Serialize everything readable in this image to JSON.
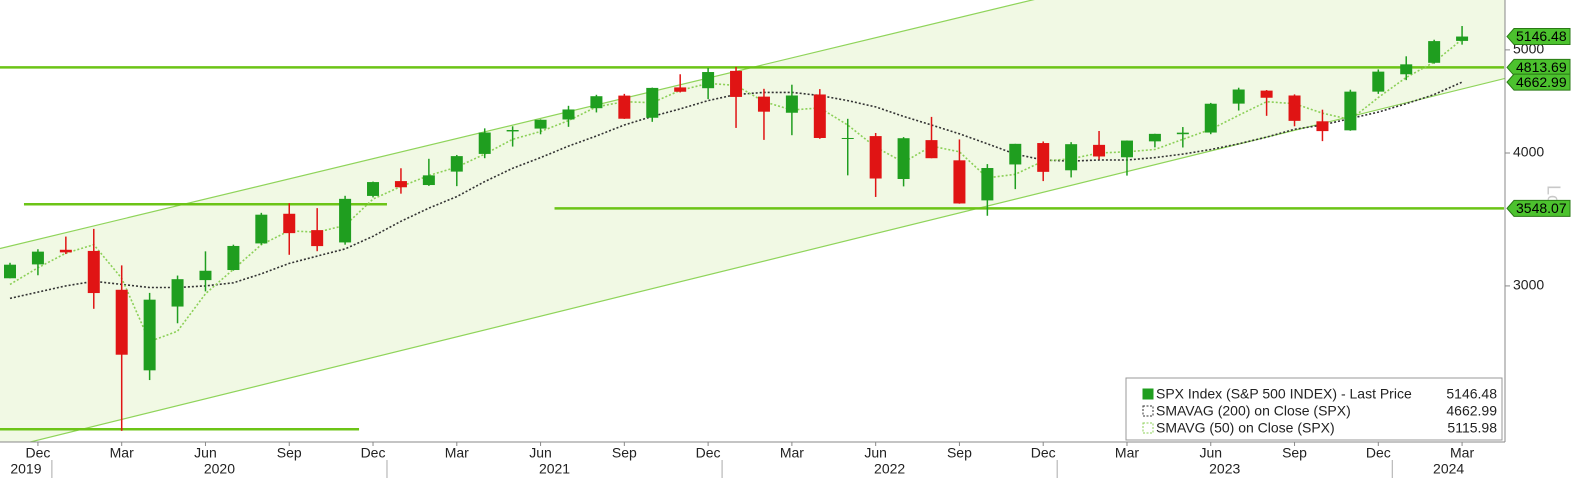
{
  "chart_data": {
    "type": "candlestick",
    "log_scale": true,
    "scale_label": "Log",
    "ylim": [
      2140,
      5570
    ],
    "yticks": [
      3000,
      4000,
      5000
    ],
    "xlim": [
      "2019-11",
      "2024-04"
    ],
    "x": [
      "2019-11",
      "2019-12",
      "2020-01",
      "2020-02",
      "2020-03",
      "2020-04",
      "2020-05",
      "2020-06",
      "2020-07",
      "2020-08",
      "2020-09",
      "2020-10",
      "2020-11",
      "2020-12",
      "2021-01",
      "2021-02",
      "2021-03",
      "2021-04",
      "2021-05",
      "2021-06",
      "2021-07",
      "2021-08",
      "2021-09",
      "2021-10",
      "2021-11",
      "2021-12",
      "2022-01",
      "2022-02",
      "2022-03",
      "2022-04",
      "2022-05",
      "2022-06",
      "2022-07",
      "2022-08",
      "2022-09",
      "2022-10",
      "2022-11",
      "2022-12",
      "2023-01",
      "2023-02",
      "2023-03",
      "2023-04",
      "2023-05",
      "2023-06",
      "2023-07",
      "2023-08",
      "2023-09",
      "2023-10",
      "2023-11",
      "2023-12",
      "2024-01",
      "2024-02",
      "2024-03"
    ],
    "xticks": [
      {
        "value": "2019-12",
        "label": "Dec"
      },
      {
        "value": "2020-03",
        "label": "Mar"
      },
      {
        "value": "2020-06",
        "label": "Jun"
      },
      {
        "value": "2020-09",
        "label": "Sep"
      },
      {
        "value": "2020-12",
        "label": "Dec"
      },
      {
        "value": "2021-03",
        "label": "Mar"
      },
      {
        "value": "2021-06",
        "label": "Jun"
      },
      {
        "value": "2021-09",
        "label": "Sep"
      },
      {
        "value": "2021-12",
        "label": "Dec"
      },
      {
        "value": "2022-03",
        "label": "Mar"
      },
      {
        "value": "2022-06",
        "label": "Jun"
      },
      {
        "value": "2022-09",
        "label": "Sep"
      },
      {
        "value": "2022-12",
        "label": "Dec"
      },
      {
        "value": "2023-03",
        "label": "Mar"
      },
      {
        "value": "2023-06",
        "label": "Jun"
      },
      {
        "value": "2023-09",
        "label": "Sep"
      },
      {
        "value": "2023-12",
        "label": "Dec"
      },
      {
        "value": "2024-03",
        "label": "Mar"
      }
    ],
    "year_labels": [
      "2019",
      "2020",
      "2021",
      "2022",
      "2023",
      "2024"
    ],
    "series": [
      {
        "name": "SPX Index (S&P 500 INDEX) - Last Price",
        "up_color": "#1f9e1f",
        "down_color": "#e01414",
        "open": [
          3050,
          3143,
          3244,
          3236,
          2975,
          2499,
          2869,
          3038,
          3105,
          3289,
          3507,
          3385,
          3296,
          3645,
          3764,
          3732,
          3842,
          3992,
          4191,
          4217,
          4301,
          4407,
          4529,
          4317,
          4610,
          4602,
          4778,
          4519,
          4364,
          4540,
          4130,
          4149,
          3781,
          4113,
          3937,
          3610,
          3902,
          4087,
          3853,
          4071,
          3963,
          4102,
          4166,
          4181,
          4451,
          4578,
          4530,
          4284,
          4201,
          4568,
          4743,
          4862,
          5098
        ],
        "high": [
          3154,
          3248,
          3338,
          3394,
          3136,
          2955,
          3068,
          3233,
          3280,
          3514,
          3588,
          3550,
          3646,
          3760,
          3870,
          3950,
          3983,
          4219,
          4238,
          4302,
          4430,
          4537,
          4546,
          4608,
          4743,
          4808,
          4819,
          4596,
          4637,
          4593,
          4307,
          4177,
          4140,
          4325,
          4119,
          3905,
          4080,
          4101,
          4095,
          4195,
          4110,
          4170,
          4231,
          4458,
          4607,
          4584,
          4541,
          4393,
          4587,
          4793,
          4931,
          5111,
          5265
        ],
        "low": [
          3050,
          3070,
          3214,
          2855,
          2192,
          2447,
          2767,
          2965,
          3101,
          3280,
          3209,
          3234,
          3280,
          3633,
          3663,
          3725,
          3723,
          3955,
          4056,
          4165,
          4233,
          4367,
          4306,
          4279,
          4560,
          4495,
          4223,
          4115,
          4157,
          4125,
          3811,
          3637,
          3721,
          3955,
          3584,
          3492,
          3699,
          3764,
          3794,
          3943,
          3809,
          4049,
          4048,
          4166,
          4385,
          4335,
          4238,
          4104,
          4197,
          4546,
          4683,
          4853,
          5057
        ],
        "close": [
          3141,
          3231,
          3226,
          2954,
          2585,
          2912,
          3044,
          3100,
          3271,
          3500,
          3363,
          3270,
          3622,
          3756,
          3714,
          3811,
          3973,
          4181,
          4204,
          4298,
          4395,
          4523,
          4308,
          4605,
          4567,
          4766,
          4516,
          4374,
          4530,
          4132,
          4132,
          3785,
          4130,
          3955,
          3586,
          3872,
          4080,
          3840,
          4077,
          3970,
          4109,
          4169,
          4180,
          4450,
          4589,
          4508,
          4288,
          4194,
          4568,
          4770,
          4846,
          5096,
          5146.48
        ]
      },
      {
        "name": "SMAVAG (200)  on Close (SPX)",
        "color": "#333333",
        "values": [
          2920,
          2960,
          3000,
          3030,
          3010,
          2990,
          2990,
          3000,
          3020,
          3080,
          3150,
          3200,
          3250,
          3340,
          3450,
          3550,
          3640,
          3760,
          3870,
          3960,
          4060,
          4150,
          4250,
          4330,
          4400,
          4480,
          4540,
          4560,
          4560,
          4530,
          4480,
          4420,
          4330,
          4250,
          4170,
          4080,
          3990,
          3940,
          3930,
          3940,
          3940,
          3960,
          3990,
          4030,
          4080,
          4140,
          4210,
          4250,
          4310,
          4370,
          4450,
          4540,
          4662.99
        ]
      },
      {
        "name": "SMAVG (50)  on Close (SPX)",
        "color": "#8cd058",
        "values": [
          3010,
          3120,
          3220,
          3280,
          3050,
          2660,
          2720,
          2950,
          3110,
          3280,
          3380,
          3370,
          3420,
          3620,
          3720,
          3810,
          3880,
          3990,
          4120,
          4190,
          4290,
          4420,
          4470,
          4460,
          4580,
          4650,
          4630,
          4470,
          4390,
          4410,
          4250,
          4050,
          3920,
          4060,
          4010,
          3790,
          3820,
          3930,
          3950,
          4000,
          4010,
          4030,
          4120,
          4210,
          4340,
          4470,
          4450,
          4360,
          4300,
          4510,
          4710,
          4870,
          5115.98
        ]
      }
    ],
    "channel": {
      "x": [
        "2019-11",
        "2024-03"
      ],
      "upper": [
        3270,
        6968
      ],
      "lower": [
        2117,
        4594
      ],
      "color": "#8fd45a",
      "fill": "#f1f9e4"
    },
    "levels": [
      {
        "value": 4813.69,
        "from": "2019-11",
        "to": "2024-04"
      },
      {
        "value": 3548.07,
        "from": "2021-07",
        "to": "2024-04"
      },
      {
        "value": 3580,
        "from": "2019-12",
        "to": "2020-12"
      },
      {
        "value": 2200,
        "from": "2019-11",
        "to": "2020-11"
      }
    ],
    "level_color": "#6cc417",
    "tag_color": "#4cc22e"
  }
}
